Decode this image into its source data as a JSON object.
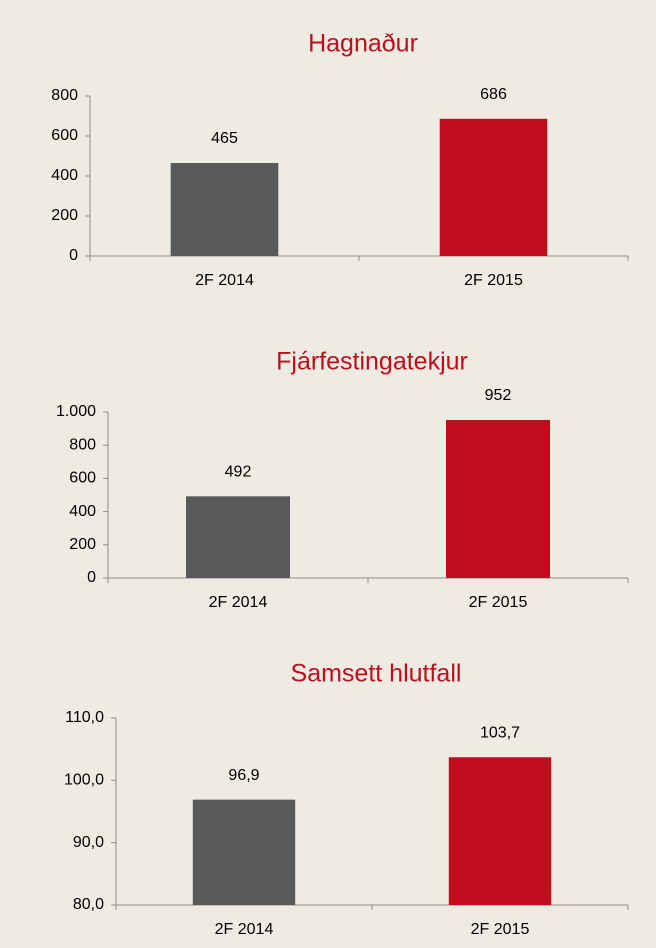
{
  "chart_data": [
    {
      "type": "bar",
      "title": "Hagnaður",
      "categories": [
        "2F 2014",
        "2F 2015"
      ],
      "values": [
        465,
        686
      ],
      "colors": [
        "#595959",
        "#c00d1e"
      ],
      "ylim": [
        0,
        800
      ],
      "yticks": [
        0,
        200,
        400,
        600,
        800
      ]
    },
    {
      "type": "bar",
      "title": "Fjárfestingatekjur",
      "categories": [
        "2F 2014",
        "2F 2015"
      ],
      "values": [
        492,
        952
      ],
      "colors": [
        "#595959",
        "#c00d1e"
      ],
      "ylim": [
        0,
        1000
      ],
      "yticks": [
        0,
        200,
        400,
        600,
        800,
        {
          "value": 1000,
          "label": "1.000"
        }
      ]
    },
    {
      "type": "bar",
      "title": "Samsett hlutfall",
      "categories": [
        "2F 2014",
        "2F 2015"
      ],
      "values": [
        96.9,
        103.7
      ],
      "value_labels": [
        "96,9",
        "103,7"
      ],
      "colors": [
        "#595959",
        "#c00d1e"
      ],
      "ylim": [
        80,
        110
      ],
      "yticks": [
        {
          "value": 80,
          "label": "80,0"
        },
        {
          "value": 90,
          "label": "90,0"
        },
        {
          "value": 100,
          "label": "100,0"
        },
        {
          "value": 110,
          "label": "110,0"
        }
      ]
    }
  ]
}
